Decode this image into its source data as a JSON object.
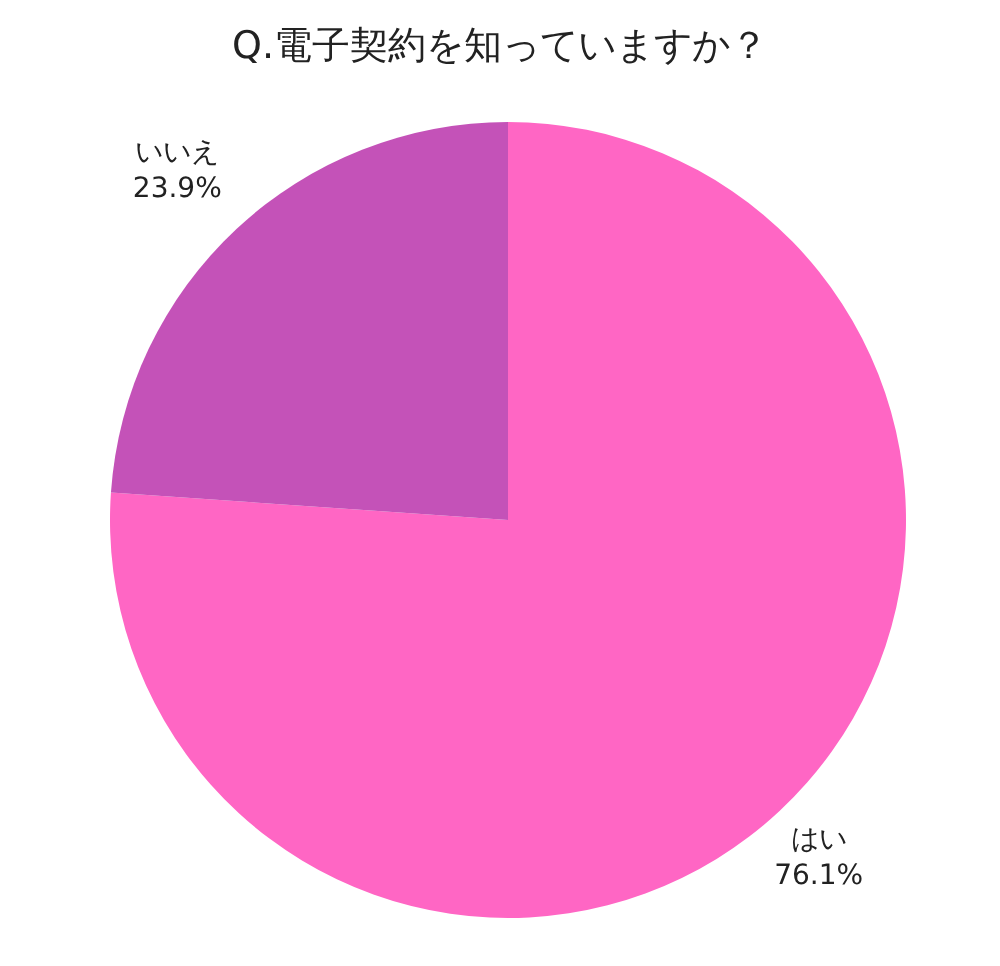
{
  "chart_data": {
    "type": "pie",
    "title": "Q.電子契約を知っていますか？",
    "categories": [
      "はい",
      "いいえ"
    ],
    "values": [
      76.1,
      23.9
    ],
    "colors": [
      "#ff66c4",
      "#c452b8"
    ],
    "value_labels": [
      "76.1%",
      "23.9%"
    ]
  }
}
